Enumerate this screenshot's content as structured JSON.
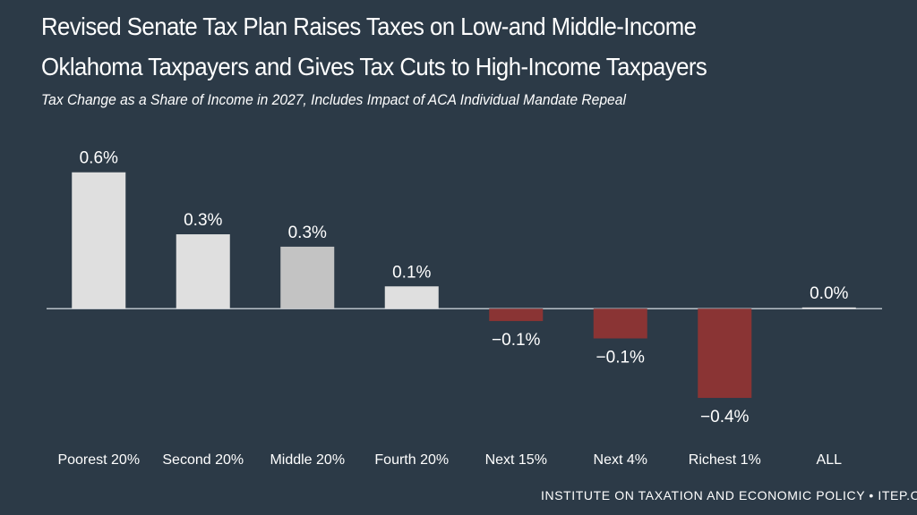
{
  "chart_data": {
    "type": "bar",
    "title": "Revised Senate Tax Plan Raises Taxes on Low-and Middle-Income Oklahoma Taxpayers and Gives Tax Cuts to High-Income Taxpayers",
    "title_lines": [
      "Revised Senate Tax Plan Raises Taxes on Low-and Middle-Income",
      "Oklahoma Taxpayers and Gives Tax Cuts to High-Income Taxpayers"
    ],
    "subtitle": "Tax Change as a Share of Income in 2027, Includes Impact of ACA Individual Mandate Repeal",
    "categories": [
      "Poorest 20%",
      "Second 20%",
      "Middle 20%",
      "Fourth 20%",
      "Next 15%",
      "Next 4%",
      "Richest 1%",
      "ALL"
    ],
    "values": [
      0.55,
      0.3,
      0.25,
      0.09,
      -0.05,
      -0.12,
      -0.36,
      0.005
    ],
    "data_labels": [
      "0.6%",
      "0.3%",
      "0.3%",
      "0.1%",
      "−0.1%",
      "−0.1%",
      "−0.4%",
      "0.0%"
    ],
    "xlabel": "",
    "ylabel": "",
    "ylim": [
      -0.45,
      0.65
    ],
    "grid": false,
    "colors": {
      "positive": "#dfdfdf",
      "highlight": "#c3c3c3",
      "negative": "#8a3434",
      "baseline": "#b9c0c8",
      "background": "#2c3a47",
      "text": "#ffffff"
    }
  },
  "footer": "INSTITUTE ON TAXATION AND ECONOMIC POLICY • ITEP.ORG"
}
